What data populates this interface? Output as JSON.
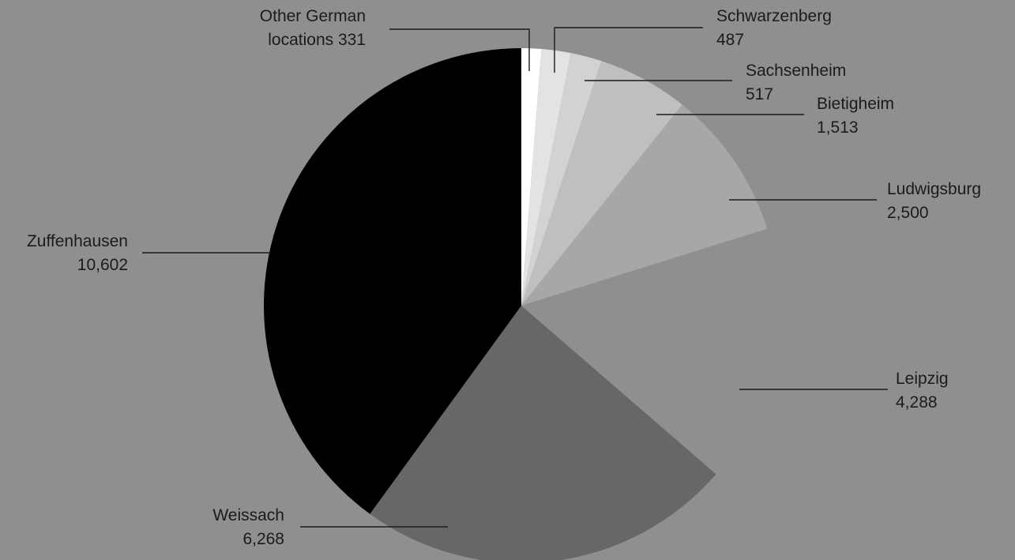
{
  "chart_data": {
    "type": "pie",
    "title": "",
    "start_angle_deg": 0,
    "direction": "clockwise",
    "slices": [
      {
        "label": "Other German locations",
        "value_text": "331",
        "value": 331,
        "color": "#ffffff"
      },
      {
        "label": "Schwarzenberg",
        "value_text": "487",
        "value": 487,
        "color": "#e3e4e2"
      },
      {
        "label": "Sachsenheim",
        "value_text": "517",
        "value": 517,
        "color": "#d2d3d1"
      },
      {
        "label": "Bietigheim",
        "value_text": "1,513",
        "value": 1513,
        "color": "#bfc0be"
      },
      {
        "label": "Ludwigsburg",
        "value_text": "2,500",
        "value": 2500,
        "color": "#a7a8a6"
      },
      {
        "label": "Leipzig",
        "value_text": "4,288",
        "value": 4288,
        "color": "#8f908e"
      },
      {
        "label": "Weissach",
        "value_text": "6,268",
        "value": 6268,
        "color": "#676865"
      },
      {
        "label": "Zuffenhausen",
        "value_text": "10,602",
        "value": 10602,
        "color": "#000000"
      }
    ]
  },
  "labels": {
    "other_line1": "Other German",
    "other_line2": "locations 331",
    "schwarzenberg_name": "Schwarzenberg",
    "schwarzenberg_value": "487",
    "sachsenheim_name": "Sachsenheim",
    "sachsenheim_value": "517",
    "bietigheim_name": "Bietigheim",
    "bietigheim_value": "1,513",
    "ludwigsburg_name": "Ludwigsburg",
    "ludwigsburg_value": "2,500",
    "leipzig_name": "Leipzig",
    "leipzig_value": "4,288",
    "weissach_name": "Weissach",
    "weissach_value": "6,268",
    "zuffenhausen_name": "Zuffenhausen",
    "zuffenhausen_value": "10,602"
  }
}
